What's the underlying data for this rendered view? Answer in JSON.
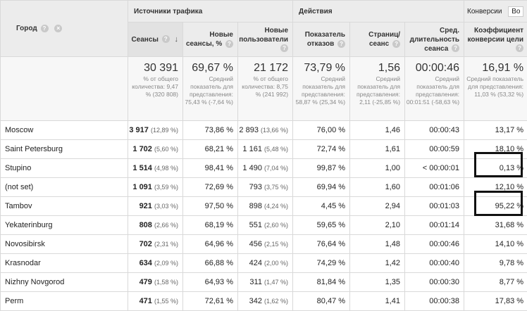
{
  "header": {
    "city": "Город",
    "traffic_group": "Источники трафика",
    "actions_group": "Действия",
    "conversions_group": "Конверсии",
    "conversions_tab": "Во",
    "columns": {
      "sessions": "Сеансы",
      "new_sessions_pct": "Новые сеансы, %",
      "new_users": "Новые пользователи",
      "bounce_rate": "Показатель отказов",
      "pages_per_session": "Страниц/сеанс",
      "avg_duration": "Сред. длительность сеанса",
      "conversion_rate": "Коэффициент конверсии цели"
    }
  },
  "totals": {
    "sessions": {
      "value": "30 391",
      "note": "% от общего количества: 9,47 % (320 808)"
    },
    "new_sessions_pct": {
      "value": "69,67 %",
      "note": "Средний показатель для представления: 75,43 % (-7,64 %)"
    },
    "new_users": {
      "value": "21 172",
      "note": "% от общего количества: 8,75 % (241 992)"
    },
    "bounce_rate": {
      "value": "73,79 %",
      "note": "Средний показатель для представления: 58,87 % (25,34 %)"
    },
    "pages_per_session": {
      "value": "1,56",
      "note": "Средний показатель для представления: 2,11 (-25,85 %)"
    },
    "avg_duration": {
      "value": "00:00:46",
      "note": "Средний показатель для представления: 00:01:51 (-58,63 %)"
    },
    "conversion_rate": {
      "value": "16,91 %",
      "note": "Средний показатель для представления: 11,03 % (53,32 %)"
    }
  },
  "rows": [
    {
      "city": "Moscow",
      "sessions": "3 917",
      "sessions_pct": "(12,89 %)",
      "new_sessions_pct": "73,86 %",
      "new_users": "2 893",
      "new_users_pct": "(13,66 %)",
      "bounce_rate": "76,00 %",
      "pages": "1,46",
      "duration": "00:00:43",
      "conversion": "13,17 %"
    },
    {
      "city": "Saint Petersburg",
      "sessions": "1 702",
      "sessions_pct": "(5,60 %)",
      "new_sessions_pct": "68,21 %",
      "new_users": "1 161",
      "new_users_pct": "(5,48 %)",
      "bounce_rate": "72,74 %",
      "pages": "1,61",
      "duration": "00:00:59",
      "conversion": "18,10 %"
    },
    {
      "city": "Stupino",
      "sessions": "1 514",
      "sessions_pct": "(4,98 %)",
      "new_sessions_pct": "98,41 %",
      "new_users": "1 490",
      "new_users_pct": "(7,04 %)",
      "bounce_rate": "99,87 %",
      "pages": "1,00",
      "duration": "< 00:00:01",
      "conversion": "0,13 %"
    },
    {
      "city": "(not set)",
      "sessions": "1 091",
      "sessions_pct": "(3,59 %)",
      "new_sessions_pct": "72,69 %",
      "new_users": "793",
      "new_users_pct": "(3,75 %)",
      "bounce_rate": "69,94 %",
      "pages": "1,60",
      "duration": "00:01:06",
      "conversion": "12,10 %"
    },
    {
      "city": "Tambov",
      "sessions": "921",
      "sessions_pct": "(3,03 %)",
      "new_sessions_pct": "97,50 %",
      "new_users": "898",
      "new_users_pct": "(4,24 %)",
      "bounce_rate": "4,45 %",
      "pages": "2,94",
      "duration": "00:01:03",
      "conversion": "95,22 %"
    },
    {
      "city": "Yekaterinburg",
      "sessions": "808",
      "sessions_pct": "(2,66 %)",
      "new_sessions_pct": "68,19 %",
      "new_users": "551",
      "new_users_pct": "(2,60 %)",
      "bounce_rate": "59,65 %",
      "pages": "2,10",
      "duration": "00:01:14",
      "conversion": "31,68 %"
    },
    {
      "city": "Novosibirsk",
      "sessions": "702",
      "sessions_pct": "(2,31 %)",
      "new_sessions_pct": "64,96 %",
      "new_users": "456",
      "new_users_pct": "(2,15 %)",
      "bounce_rate": "76,64 %",
      "pages": "1,48",
      "duration": "00:00:46",
      "conversion": "14,10 %"
    },
    {
      "city": "Krasnodar",
      "sessions": "634",
      "sessions_pct": "(2,09 %)",
      "new_sessions_pct": "66,88 %",
      "new_users": "424",
      "new_users_pct": "(2,00 %)",
      "bounce_rate": "74,29 %",
      "pages": "1,42",
      "duration": "00:00:40",
      "conversion": "9,78 %"
    },
    {
      "city": "Nizhny Novgorod",
      "sessions": "479",
      "sessions_pct": "(1,58 %)",
      "new_sessions_pct": "64,93 %",
      "new_users": "311",
      "new_users_pct": "(1,47 %)",
      "bounce_rate": "81,84 %",
      "pages": "1,35",
      "duration": "00:00:30",
      "conversion": "8,77 %"
    },
    {
      "city": "Perm",
      "sessions": "471",
      "sessions_pct": "(1,55 %)",
      "new_sessions_pct": "72,61 %",
      "new_users": "342",
      "new_users_pct": "(1,62 %)",
      "bounce_rate": "80,47 %",
      "pages": "1,41",
      "duration": "00:00:38",
      "conversion": "17,83 %"
    }
  ],
  "icons": {
    "help": "question-mark-icon",
    "remove": "remove-dimension-icon",
    "sort": "sort-down-arrow-icon"
  },
  "highlight_color": "#111111"
}
